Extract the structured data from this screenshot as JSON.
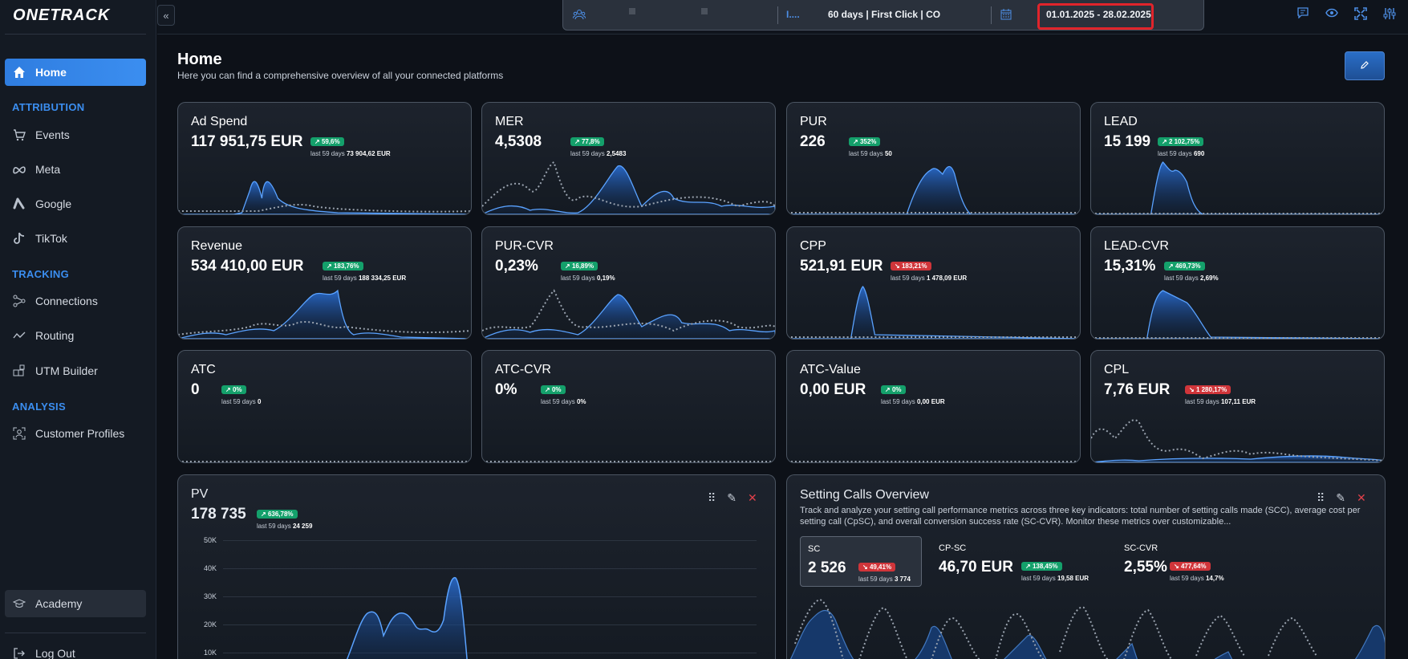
{
  "app": {
    "logo": "ONETRACK"
  },
  "sidebar": {
    "home": "Home",
    "sections": {
      "attribution": "ATTRIBUTION",
      "tracking": "TRACKING",
      "analysis": "ANALYSIS"
    },
    "attribution_items": [
      "Events",
      "Meta",
      "Google",
      "TikTok"
    ],
    "tracking_items": [
      "Connections",
      "Routing",
      "UTM Builder"
    ],
    "analysis_items": [
      "Customer Profiles"
    ],
    "academy": "Academy",
    "logout": "Log Out"
  },
  "topbar": {
    "model_short": "I....",
    "attribution": "60 days | First Click | CO",
    "date_range": "01.01.2025 - 28.02.2025"
  },
  "header": {
    "title": "Home",
    "subtitle": "Here you can find a comprehensive overview of all your connected platforms"
  },
  "metrics": [
    {
      "title": "Ad Spend",
      "value": "117 951,75 EUR",
      "change": "59,6%",
      "dir": "up",
      "last_label": "last 59 days",
      "last_value": "73 904,62 EUR"
    },
    {
      "title": "MER",
      "value": "4,5308",
      "change": "77,8%",
      "dir": "up",
      "last_label": "last 59 days",
      "last_value": "2,5483"
    },
    {
      "title": "PUR",
      "value": "226",
      "change": "352%",
      "dir": "up",
      "last_label": "last 59 days",
      "last_value": "50"
    },
    {
      "title": "LEAD",
      "value": "15 199",
      "change": "2 102,75%",
      "dir": "up",
      "last_label": "last 59 days",
      "last_value": "690"
    },
    {
      "title": "Revenue",
      "value": "534 410,00 EUR",
      "change": "183,76%",
      "dir": "up",
      "last_label": "last 59 days",
      "last_value": "188 334,25 EUR"
    },
    {
      "title": "PUR-CVR",
      "value": "0,23%",
      "change": "16,89%",
      "dir": "up",
      "last_label": "last 59 days",
      "last_value": "0,19%"
    },
    {
      "title": "CPP",
      "value": "521,91 EUR",
      "change": "183,21%",
      "dir": "down",
      "last_label": "last 59 days",
      "last_value": "1 478,09 EUR"
    },
    {
      "title": "LEAD-CVR",
      "value": "15,31%",
      "change": "469,73%",
      "dir": "up",
      "last_label": "last 59 days",
      "last_value": "2,69%"
    },
    {
      "title": "ATC",
      "value": "0",
      "change": "0%",
      "dir": "up",
      "last_label": "last 59 days",
      "last_value": "0"
    },
    {
      "title": "ATC-CVR",
      "value": "0%",
      "change": "0%",
      "dir": "up",
      "last_label": "last 59 days",
      "last_value": "0%"
    },
    {
      "title": "ATC-Value",
      "value": "0,00 EUR",
      "change": "0%",
      "dir": "up",
      "last_label": "last 59 days",
      "last_value": "0,00 EUR"
    },
    {
      "title": "CPL",
      "value": "7,76 EUR",
      "change": "1 280,17%",
      "dir": "down",
      "last_label": "last 59 days",
      "last_value": "107,11 EUR"
    }
  ],
  "pv": {
    "title": "PV",
    "value": "178 735",
    "change": "636,78%",
    "dir": "up",
    "last_label": "last 59 days",
    "last_value": "24 259",
    "y_ticks": [
      "50K",
      "40K",
      "30K",
      "20K",
      "10K"
    ]
  },
  "setting_calls": {
    "title": "Setting Calls Overview",
    "description": "Track and analyze your setting call performance metrics across three key indicators: total number of setting calls made (SCC), average cost per setting call (CpSC), and overall conversion success rate (SC-CVR). Monitor these metrics over customizable...",
    "items": [
      {
        "title": "SC",
        "value": "2 526",
        "change": "49,41%",
        "dir": "down",
        "last_label": "last 59 days",
        "last_value": "3 774"
      },
      {
        "title": "CP-SC",
        "value": "46,70 EUR",
        "change": "138,45%",
        "dir": "up",
        "last_label": "last 59 days",
        "last_value": "19,58 EUR"
      },
      {
        "title": "SC-CVR",
        "value": "2,55%",
        "change": "477,64%",
        "dir": "down",
        "last_label": "last 59 days",
        "last_value": "14,7%"
      }
    ]
  },
  "colors": {
    "accent": "#3b8ef0",
    "up": "#14a06b",
    "down": "#d0353a",
    "highlight": "#e0242b"
  }
}
